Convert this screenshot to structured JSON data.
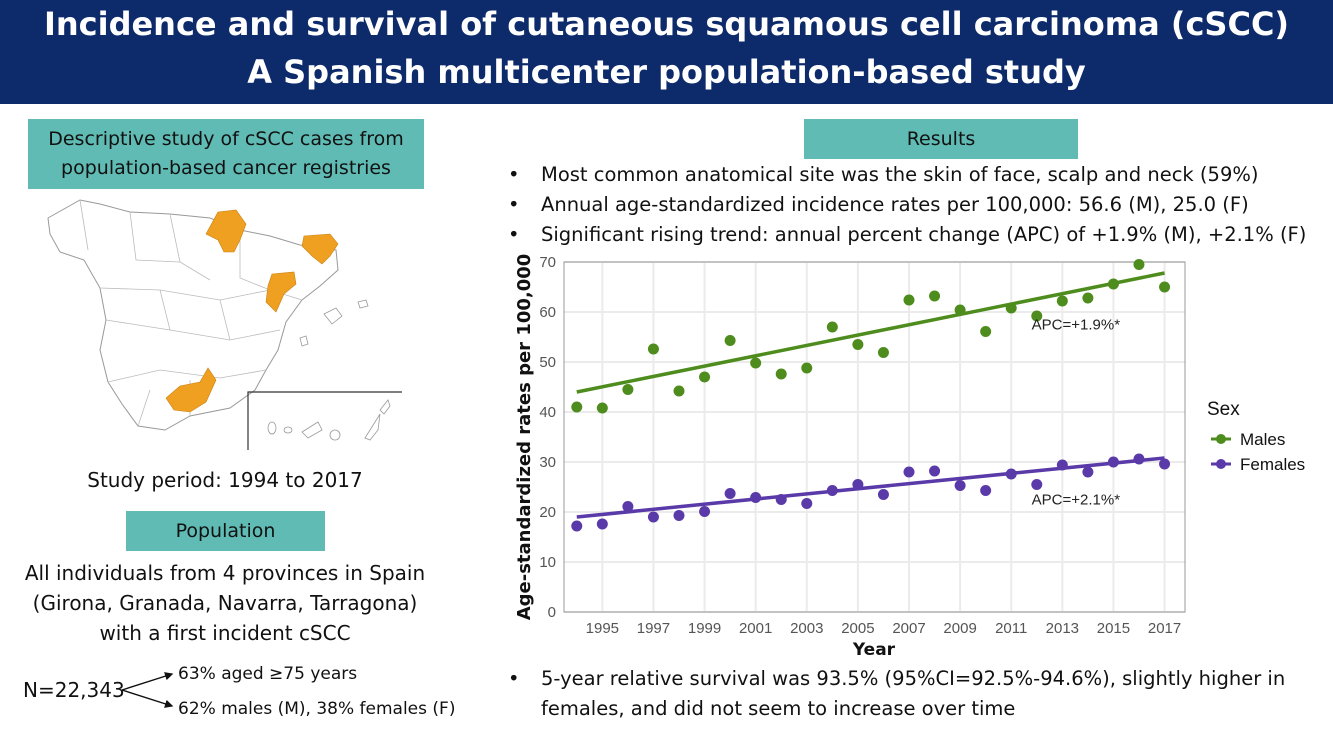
{
  "header": {
    "title_line1": "Incidence and survival of cutaneous squamous cell carcinoma (cSCC)",
    "title_line2": "A Spanish multicenter population-based study"
  },
  "left": {
    "study_box_line1": "Descriptive study of cSCC cases from",
    "study_box_line2": "population-based cancer registries",
    "map": {
      "highlighted_provinces": [
        "Navarra",
        "Girona",
        "Tarragona",
        "Granada"
      ],
      "highlight_color": "#f0a020"
    },
    "study_period": "Study period: 1994 to 2017",
    "population_label": "Population",
    "population_line1": "All individuals from 4 provinces in Spain",
    "population_line2": "(Girona, Granada, Navarra, Tarragona)",
    "population_line3": "with a first incident cSCC",
    "n_label": "N=22,343",
    "n_branch1": "63% aged ≥75 years",
    "n_branch2": "62% males (M), 38% females (F)"
  },
  "right": {
    "results_label": "Results",
    "bullets": [
      "Most common anatomical site was the skin of face, scalp and neck (59%)",
      "Annual age-standardized incidence rates per 100,000: 56.6 (M), 25.0 (F)",
      "Significant rising trend: annual percent change (APC) of +1.9% (M), +2.1% (F)"
    ],
    "survival_line1": "5-year relative survival was 93.5% (95%CI=92.5%-94.6%), slightly higher in",
    "survival_line2": "females, and did not seem to increase over time"
  },
  "colors": {
    "header_bg": "#0d2a6b",
    "teal_box": "#5fbbb4",
    "males": "#4e8c1e",
    "females": "#5a3aa8"
  },
  "chart_data": {
    "type": "scatter",
    "title": "",
    "xlabel": "Year",
    "ylabel": "Age-standardized rates per 100,000",
    "xlim": [
      1993.5,
      2017.8
    ],
    "ylim": [
      0,
      70
    ],
    "x_ticks": [
      "1995",
      "1997",
      "1999",
      "2001",
      "2003",
      "2005",
      "2007",
      "2009",
      "2011",
      "2013",
      "2015",
      "2017"
    ],
    "y_ticks": [
      "0",
      "10",
      "20",
      "30",
      "40",
      "50",
      "60",
      "70"
    ],
    "grid": true,
    "legend_title": "Sex",
    "legend_position": "right",
    "x": [
      1994,
      1995,
      1996,
      1997,
      1998,
      1999,
      2000,
      2001,
      2002,
      2003,
      2004,
      2005,
      2006,
      2007,
      2008,
      2009,
      2010,
      2011,
      2012,
      2013,
      2014,
      2015,
      2016,
      2017
    ],
    "series": [
      {
        "name": "Males",
        "color": "#4e8c1e",
        "values": [
          41.0,
          40.8,
          44.5,
          52.6,
          44.2,
          47.0,
          54.3,
          49.8,
          47.6,
          48.8,
          57.0,
          53.5,
          51.9,
          62.4,
          63.2,
          60.4,
          56.1,
          60.8,
          59.2,
          62.2,
          62.8,
          65.6,
          69.5,
          65.0
        ],
        "trend": {
          "x": [
            1994,
            2017
          ],
          "y": [
            44.0,
            67.8
          ]
        },
        "annotation": "APC=+1.9%*"
      },
      {
        "name": "Females",
        "color": "#5a3aa8",
        "values": [
          17.2,
          17.6,
          21.1,
          19.0,
          19.3,
          20.1,
          23.7,
          22.9,
          22.5,
          21.7,
          24.3,
          25.5,
          23.5,
          28.0,
          28.2,
          25.3,
          24.3,
          27.6,
          25.5,
          29.4,
          28.0,
          30.0,
          30.6,
          29.6
        ],
        "trend": {
          "x": [
            1994,
            2017
          ],
          "y": [
            19.0,
            30.8
          ]
        },
        "annotation": "APC=+2.1%*"
      }
    ]
  }
}
